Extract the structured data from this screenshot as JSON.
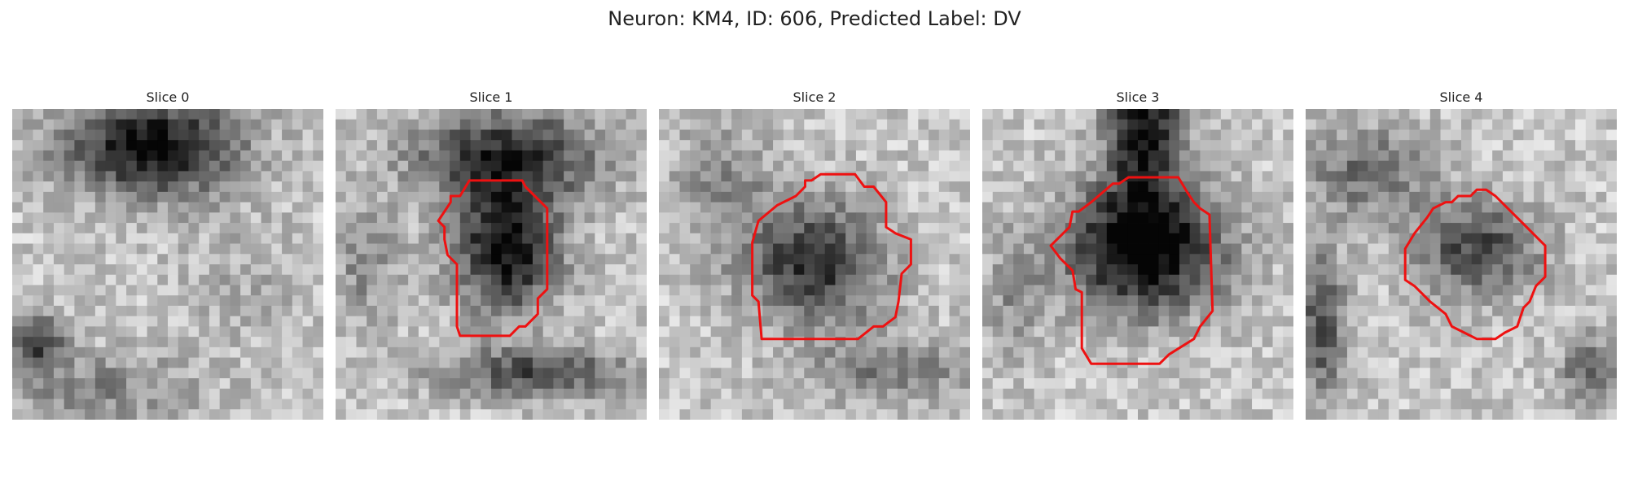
{
  "figure": {
    "title": "Neuron: KM4, ID: 606, Predicted Label: DV",
    "outline_color": "#ee1111"
  },
  "panels": [
    {
      "label": "Slice 0",
      "has_outline": false
    },
    {
      "label": "Slice 1",
      "has_outline": true
    },
    {
      "label": "Slice 2",
      "has_outline": true
    },
    {
      "label": "Slice 3",
      "has_outline": true
    },
    {
      "label": "Slice 4",
      "has_outline": true
    }
  ]
}
